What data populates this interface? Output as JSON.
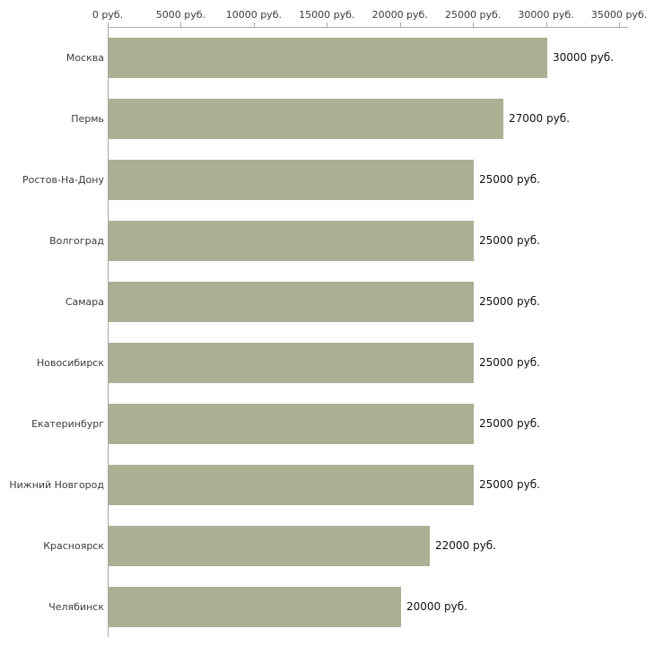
{
  "chart_data": {
    "type": "bar",
    "orientation": "horizontal",
    "unit": "руб.",
    "categories": [
      "Москва",
      "Пермь",
      "Ростов-На-Дону",
      "Волгоград",
      "Самара",
      "Новосибирск",
      "Екатеринбург",
      "Нижний Новгород",
      "Красноярск",
      "Челябинск"
    ],
    "values": [
      30000,
      27000,
      25000,
      25000,
      25000,
      25000,
      25000,
      25000,
      22000,
      20000
    ],
    "value_labels": [
      "30000 руб.",
      "27000 руб.",
      "25000 руб.",
      "25000 руб.",
      "25000 руб.",
      "25000 руб.",
      "25000 руб.",
      "25000 руб.",
      "22000 руб.",
      "20000 руб."
    ],
    "x_ticks": [
      0,
      5000,
      10000,
      15000,
      20000,
      25000,
      30000,
      35000
    ],
    "x_tick_labels": [
      "0 руб.",
      "5000 руб.",
      "10000 руб.",
      "15000 руб.",
      "20000 руб.",
      "25000 руб.",
      "30000 руб.",
      "35000 руб."
    ],
    "xlim": [
      0,
      35000
    ],
    "grid": false,
    "legend": false,
    "axis_position": "top",
    "bar_color": "#abb094",
    "axis_color": "#aaaaaa",
    "tick_label_color": "#3c3c3c",
    "value_label_color": "#111111",
    "background_color": "#ffffff"
  }
}
